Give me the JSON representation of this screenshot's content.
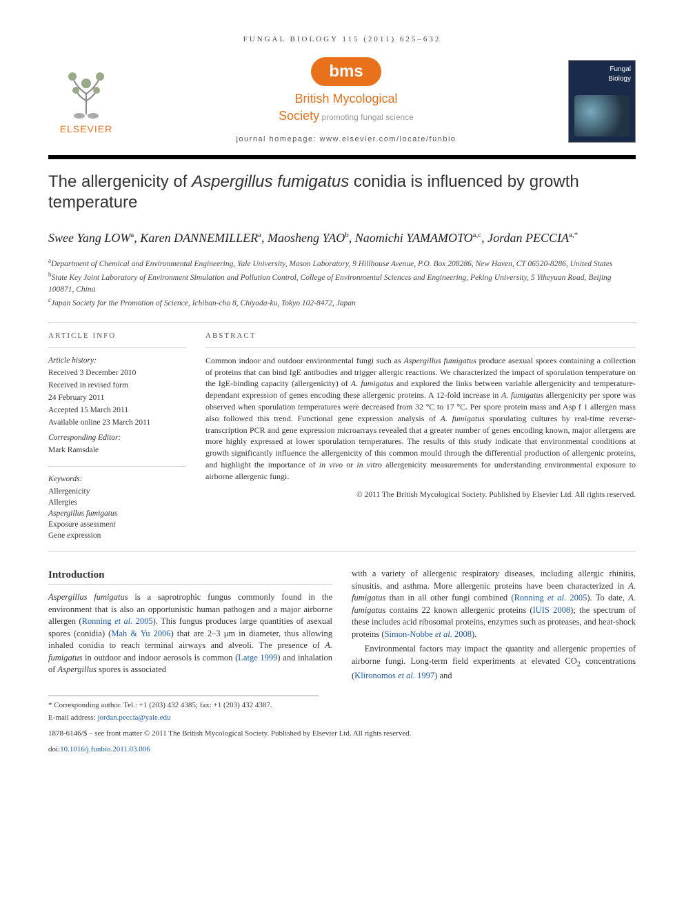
{
  "running_head": "FUNGAL BIOLOGY 115 (2011) 625–632",
  "elsevier_label": "ELSEVIER",
  "bms_oval": "bms",
  "bms_name": "British Mycological",
  "bms_society": "Society",
  "bms_tagline": "promoting fungal science",
  "homepage_line": "journal homepage: www.elsevier.com/locate/funbio",
  "cover_title1": "Fungal",
  "cover_title2": "Biology",
  "article_title_html": "The allergenicity of <em>Aspergillus fumigatus</em> conidia is influenced by growth temperature",
  "authors_html": "Swee Yang LOW<sup>a</sup>, Karen DANNEMILLER<sup>a</sup>, Maosheng YAO<sup>b</sup>, Naomichi YAMAMOTO<sup>a,c</sup>, Jordan PECCIA<sup>a,*</sup>",
  "affiliations": [
    "<sup>a</sup>Department of Chemical and Environmental Engineering, Yale University, Mason Laboratory, 9 Hillhouse Avenue, P.O. Box 208286, New Haven, CT 06520-8286, United States",
    "<sup>b</sup>State Key Joint Laboratory of Environment Simulation and Pollution Control, College of Environmental Sciences and Engineering, Peking University, 5 Yiheyuan Road, Beijing 100871, China",
    "<sup>c</sup>Japan Society for the Promotion of Science, Ichiban-cho 8, Chiyoda-ku, Tokyo 102-8472, Japan"
  ],
  "article_info_label": "ARTICLE INFO",
  "history_label": "Article history:",
  "history_lines": [
    "Received 3 December 2010",
    "Received in revised form",
    "24 February 2011",
    "Accepted 15 March 2011",
    "Available online 23 March 2011"
  ],
  "corr_editor_label": "Corresponding Editor:",
  "corr_editor_name": "Mark Ramsdale",
  "keywords_label": "Keywords:",
  "keywords": [
    "Allergenicity",
    "Allergies",
    "Aspergillus fumigatus",
    "Exposure assessment",
    "Gene expression"
  ],
  "abstract_label": "ABSTRACT",
  "abstract_html": "Common indoor and outdoor environmental fungi such as <em>Aspergillus fumigatus</em> produce asexual spores containing a collection of proteins that can bind IgE antibodies and trigger allergic reactions. We characterized the impact of sporulation temperature on the IgE-binding capacity (allergenicity) of <em>A. fumigatus</em> and explored the links between variable allergenicity and temperature-dependant expression of genes encoding these allergenic proteins. A 12-fold increase in <em>A. fumigatus</em> allergenicity per spore was observed when sporulation temperatures were decreased from 32 °C to 17 °C. Per spore protein mass and Asp f 1 allergen mass also followed this trend. Functional gene expression analysis of <em>A. fumigatus</em> sporulating cultures by real-time reverse-transcription PCR and gene expression microarrays revealed that a greater number of genes encoding known, major allergens are more highly expressed at lower sporulation temperatures. The results of this study indicate that environmental conditions at growth significantly influence the allergenicity of this common mould through the differential production of allergenic proteins, and highlight the importance of <em>in vivo</em> or <em>in vitro</em> allergenicity measurements for understanding environmental exposure to airborne allergenic fungi.",
  "abstract_copyright": "© 2011 The British Mycological Society. Published by Elsevier Ltd. All rights reserved.",
  "intro_heading": "Introduction",
  "intro_col1_html": "<em>Aspergillus fumigatus</em> is a saprotrophic fungus commonly found in the environment that is also an opportunistic human pathogen and a major airborne allergen (<span class=\"citation-link\">Ronning <em>et al.</em> 2005</span>). This fungus produces large quantities of asexual spores (conidia) (<span class=\"citation-link\">Mah &amp; Yu 2006</span>) that are 2–3 μm in diameter, thus allowing inhaled conidia to reach terminal airways and alveoli. The presence of <em>A. fumigatus</em> in outdoor and indoor aerosols is common (<span class=\"citation-link\">Latge 1999</span>) and inhalation of <em>Aspergillus</em> spores is associated",
  "intro_col2_html": "with a variety of allergenic respiratory diseases, including allergic rhinitis, sinusitis, and asthma. More allergenic proteins have been characterized in <em>A. fumigatus</em> than in all other fungi combined (<span class=\"citation-link\">Ronning <em>et al.</em> 2005</span>). To date, <em>A. fumigatus</em> contains 22 known allergenic proteins (<span class=\"citation-link\">IUIS 2008</span>); the spectrum of these includes acid ribosomal proteins, enzymes such as proteases, and heat-shock proteins (<span class=\"citation-link\">Simon-Nobbe <em>et al.</em> 2008</span>).",
  "intro_col2_p2_html": "Environmental factors may impact the quantity and allergenic properties of airborne fungi. Long-term field experiments at elevated CO<sub>2</sub> concentrations (<span class=\"citation-link\">Klironomos <em>et al.</em> 1997</span>) and",
  "footnote_corr": "* Corresponding author. Tel.: +1 (203) 432 4385; fax: +1 (203) 432 4387.",
  "footnote_email_label": "E-mail address:",
  "footnote_email": "jordan.peccia@yale.edu",
  "front_matter": "1878-6146/$ – see front matter © 2011 The British Mycological Society. Published by Elsevier Ltd. All rights reserved.",
  "doi_label": "doi:",
  "doi": "10.1016/j.funbio.2011.03.006",
  "colors": {
    "elsevier_orange": "#e9711c",
    "link_blue": "#1a5aa8",
    "rule_gray": "#cccccc",
    "cover_bg": "#1a2a4a"
  }
}
